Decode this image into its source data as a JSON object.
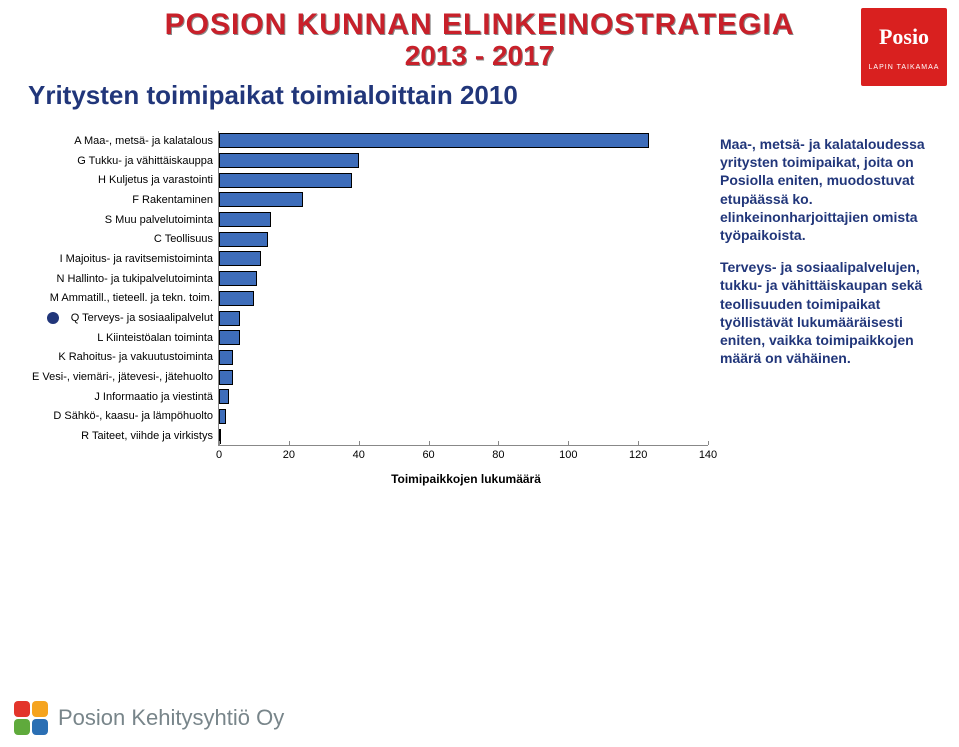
{
  "header": {
    "main_title": "POSION KUNNAN ELINKEINOSTRATEGIA",
    "sub_title": "2013 - 2017",
    "logo_name": "Posio",
    "logo_tag": "LAPIN TAIKAMAA"
  },
  "page_subtitle": "Yritysten toimipaikat toimialoittain 2010",
  "chart": {
    "type": "bar-horizontal",
    "bar_color": "#3e6dba",
    "bar_border": "#000000",
    "axis_color": "#888888",
    "categories": [
      "A Maa-, metsä- ja kalatalous",
      "G Tukku- ja vähittäiskauppa",
      "H Kuljetus ja varastointi",
      "F Rakentaminen",
      "S Muu palvelutoiminta",
      "C Teollisuus",
      "I Majoitus- ja ravitsemistoiminta",
      "N Hallinto- ja tukipalvelutoiminta",
      "M Ammatill., tieteell. ja tekn. toim.",
      "Q Terveys- ja sosiaalipalvelut",
      "L Kiinteistöalan toiminta",
      "K Rahoitus- ja vakuutustoiminta",
      "E Vesi-, viemäri-, jätevesi-, jätehuolto",
      "J Informaatio ja viestintä",
      "D Sähkö-, kaasu- ja lämpöhuolto",
      "R Taiteet, viihde ja virkistys"
    ],
    "values": [
      123,
      40,
      38,
      24,
      15,
      14,
      12,
      11,
      10,
      6,
      6,
      4,
      4,
      3,
      2,
      0
    ],
    "bullet_index": 9,
    "x_axis": {
      "min": 0,
      "max": 140,
      "step": 20,
      "title": "Toimipaikkojen lukumäärä"
    },
    "label_fontsize": 11,
    "tick_fontsize": 11
  },
  "side_text": {
    "para1": "Maa-, metsä- ja kalataloudessa yritysten toimipaikat, joita on Posiolla eniten, muodostuvat etupäässä ko. elinkeinonharjoittajien omista työpaikoista.",
    "para2": "Terveys- ja sosiaalipalvelujen, tukku- ja vähittäiskaupan sekä teollisuuden toimipaikat työllistävät lukumääräisesti eniten, vaikka toimipaikkojen määrä on vähäinen."
  },
  "footer": {
    "company": "Posion Kehitysyhtiö Oy"
  },
  "colors": {
    "title_red": "#c8202a",
    "brand_blue": "#21367a",
    "logo_red": "#d9201f",
    "footer_grey": "#78858a"
  }
}
